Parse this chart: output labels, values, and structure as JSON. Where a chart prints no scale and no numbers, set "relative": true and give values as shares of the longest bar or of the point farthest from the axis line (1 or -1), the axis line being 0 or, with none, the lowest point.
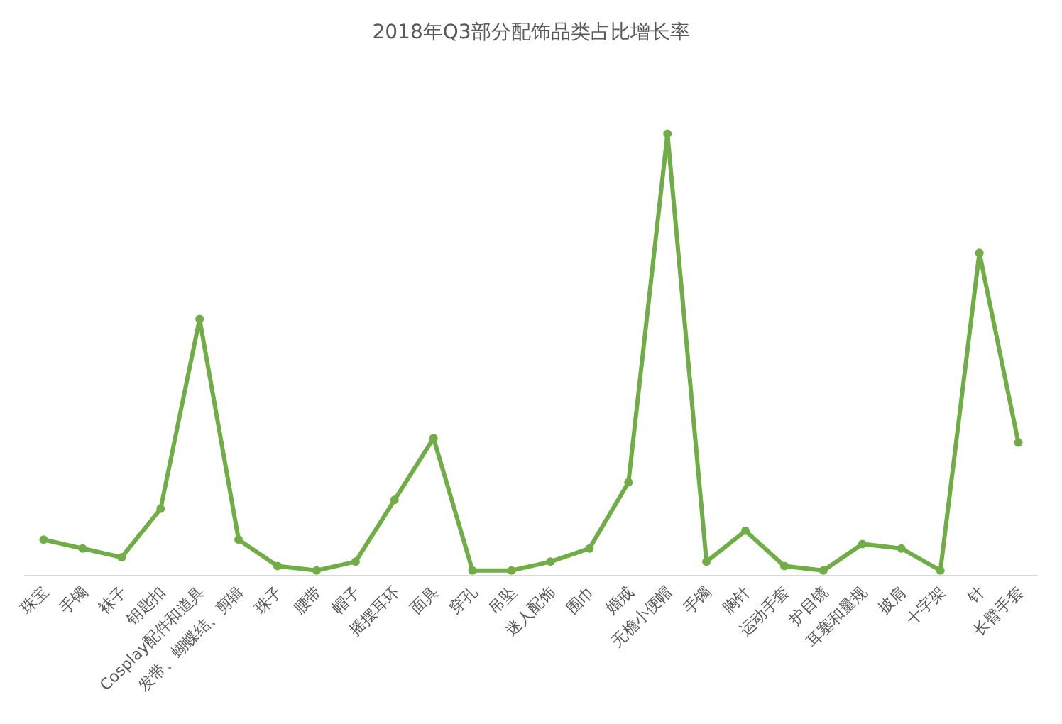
{
  "chart_data": {
    "type": "line",
    "title": "2018年Q3部分配饰品类占比增长率",
    "categories": [
      "珠宝",
      "手镯",
      "袜子",
      "钥匙扣",
      "Cosplay配件和道具",
      "发带、蝴蝶结、剪辑",
      "珠子",
      "腰带",
      "帽子",
      "摇摆耳环",
      "面具",
      "穿孔",
      "吊坠",
      "迷人配饰",
      "围巾",
      "婚戒",
      "无檐小便帽",
      "手镯",
      "胸针",
      "运动手套",
      "护目镜",
      "耳塞和量规",
      "披肩",
      "十字架",
      "针",
      "长臂手套"
    ],
    "values": [
      0.08,
      0.06,
      0.04,
      0.15,
      0.58,
      0.08,
      0.02,
      0.01,
      0.03,
      0.17,
      0.31,
      0.01,
      0.01,
      0.03,
      0.06,
      0.21,
      1,
      0.03,
      0.1,
      0.02,
      0.01,
      0.07,
      0.06,
      0.01,
      0.73,
      0.3
    ],
    "color": "#70ad47",
    "relative": true,
    "marker": "circle",
    "line_style": "solid"
  }
}
